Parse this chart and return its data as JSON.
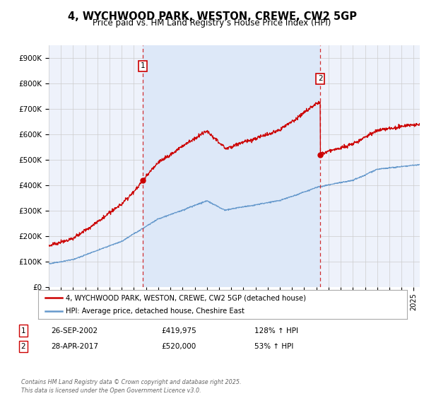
{
  "title": "4, WYCHWOOD PARK, WESTON, CREWE, CW2 5GP",
  "subtitle": "Price paid vs. HM Land Registry’s House Price Index (HPI)",
  "ylabel_ticks": [
    "£0",
    "£100K",
    "£200K",
    "£300K",
    "£400K",
    "£500K",
    "£600K",
    "£700K",
    "£800K",
    "£900K"
  ],
  "ytick_values": [
    0,
    100000,
    200000,
    300000,
    400000,
    500000,
    600000,
    700000,
    800000,
    900000
  ],
  "ylim": [
    0,
    950000
  ],
  "xlim_start": 1995.0,
  "xlim_end": 2025.5,
  "red_color": "#cc0000",
  "blue_color": "#6699cc",
  "shade_color": "#dde8f8",
  "grid_color": "#cccccc",
  "bg_color": "#eef2fb",
  "sale1_x": 2002.74,
  "sale1_y": 419975,
  "sale1_label": "1",
  "sale1_date": "26-SEP-2002",
  "sale1_price": "£419,975",
  "sale1_hpi": "128% ↑ HPI",
  "sale2_x": 2017.33,
  "sale2_y": 520000,
  "sale2_label": "2",
  "sale2_date": "28-APR-2017",
  "sale2_price": "£520,000",
  "sale2_hpi": "53% ↑ HPI",
  "legend_line1": "4, WYCHWOOD PARK, WESTON, CREWE, CW2 5GP (detached house)",
  "legend_line2": "HPI: Average price, detached house, Cheshire East",
  "footer": "Contains HM Land Registry data © Crown copyright and database right 2025.\nThis data is licensed under the Open Government Licence v3.0."
}
